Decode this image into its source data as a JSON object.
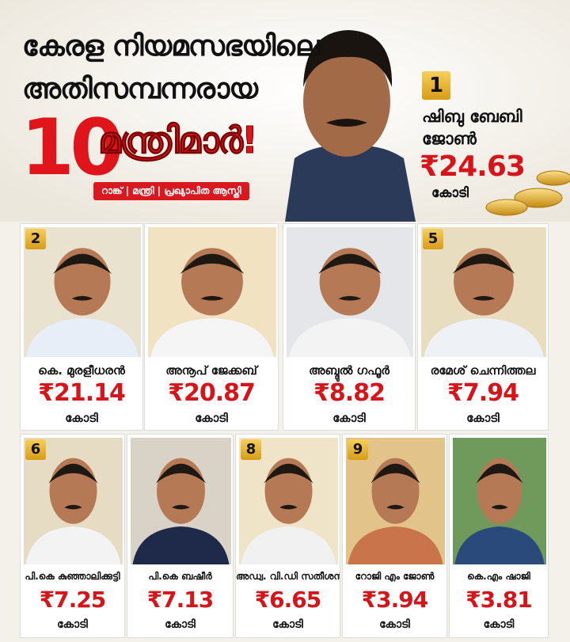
{
  "header": {
    "title_line1": "കേരള നിയമസഭയിലെ",
    "title_line2": "അതിസമ്പന്നരായ",
    "title_number": "10",
    "title_word": "മന്ത്രിമാർ!",
    "subtitle": "റാങ്ക് | മന്ത്രി | പ്രഖ്യാപിത ആസ്തി"
  },
  "top": {
    "rank": "1",
    "name_line1": "ഷിബു ബേബി",
    "name_line2": "ജോൺ",
    "amount": "₹24.63",
    "unit": "കോടി"
  },
  "row1": [
    {
      "rank": "2",
      "name": "കെ. മുരളീധരൻ",
      "amount": "₹21.14",
      "unit": "കോടി"
    },
    {
      "name": "അനൂപ് ജേക്കബ്",
      "amount": "₹20.87",
      "unit": "കോടി"
    },
    {
      "name": "അബ്ദുൽ ഗഫൂർ",
      "amount": "₹8.82",
      "unit": "കോടി"
    },
    {
      "rank": "5",
      "name": "രമേശ് ചെന്നിത്തല",
      "amount": "₹7.94",
      "unit": "കോടി"
    }
  ],
  "row2": [
    {
      "rank": "6",
      "name": "പി.കെ കുഞ്ഞാലിക്കുട്ടി",
      "amount": "₹7.25",
      "unit": "കോടി"
    },
    {
      "name": "പി.കെ ബഷീർ",
      "amount": "₹7.13",
      "unit": "കോടി"
    },
    {
      "rank": "8",
      "name": "അഡ്വ. വി.ഡി സതീശൻ",
      "amount": "₹6.65",
      "unit": "കോടി"
    },
    {
      "rank": "9",
      "name": "റോജി എം ജോൺ",
      "amount": "₹3.94",
      "unit": "കോടി"
    },
    {
      "name": "കെ.എം ഷാജി",
      "amount": "₹3.81",
      "unit": "കോടി"
    }
  ]
}
